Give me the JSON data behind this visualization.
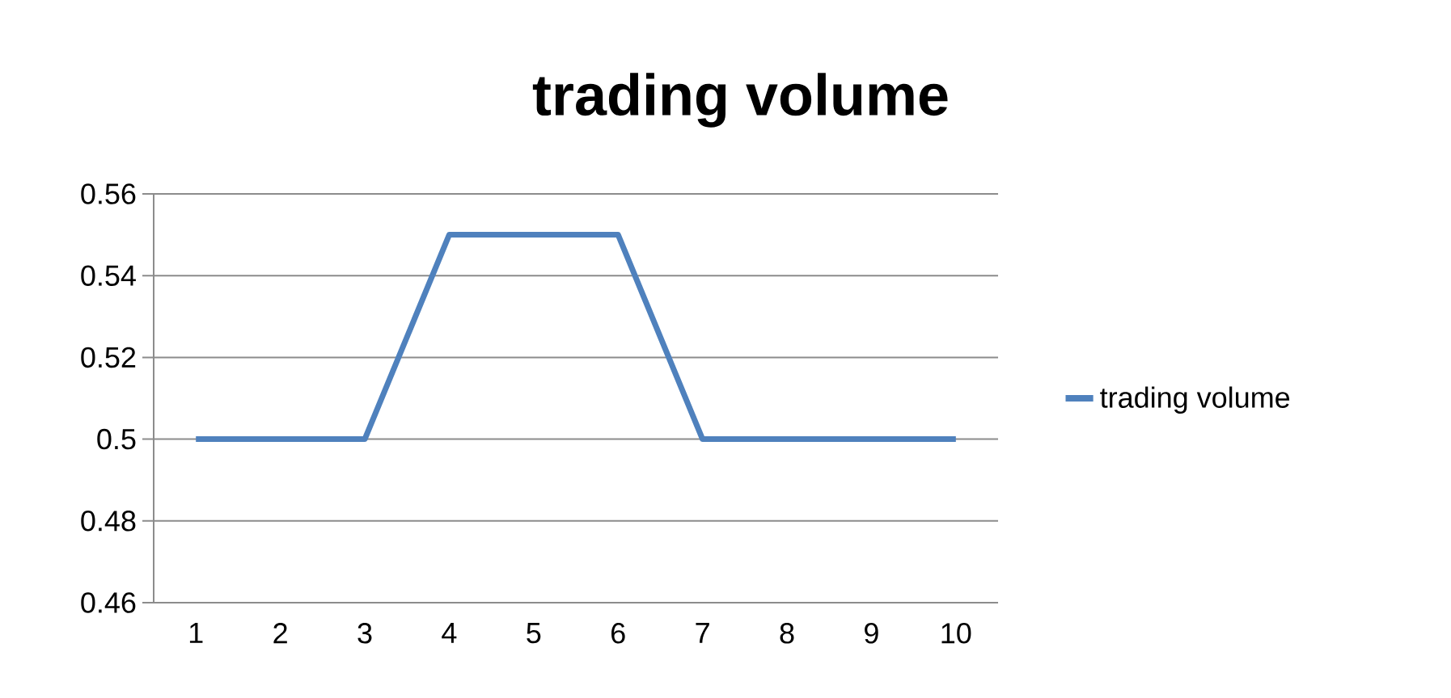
{
  "chart_data": {
    "type": "line",
    "title": "trading volume",
    "categories": [
      "1",
      "2",
      "3",
      "4",
      "5",
      "6",
      "7",
      "8",
      "9",
      "10"
    ],
    "series": [
      {
        "name": "trading volume",
        "color": "#4f81bd",
        "values": [
          0.5,
          0.5,
          0.5,
          0.55,
          0.55,
          0.55,
          0.5,
          0.5,
          0.5,
          0.5
        ]
      }
    ],
    "ylim": [
      0.46,
      0.56
    ],
    "yticks": [
      0.46,
      0.48,
      0.5,
      0.52,
      0.54,
      0.56
    ],
    "grid": "y",
    "legend": "right",
    "marker": "none",
    "line_style": "solid"
  }
}
